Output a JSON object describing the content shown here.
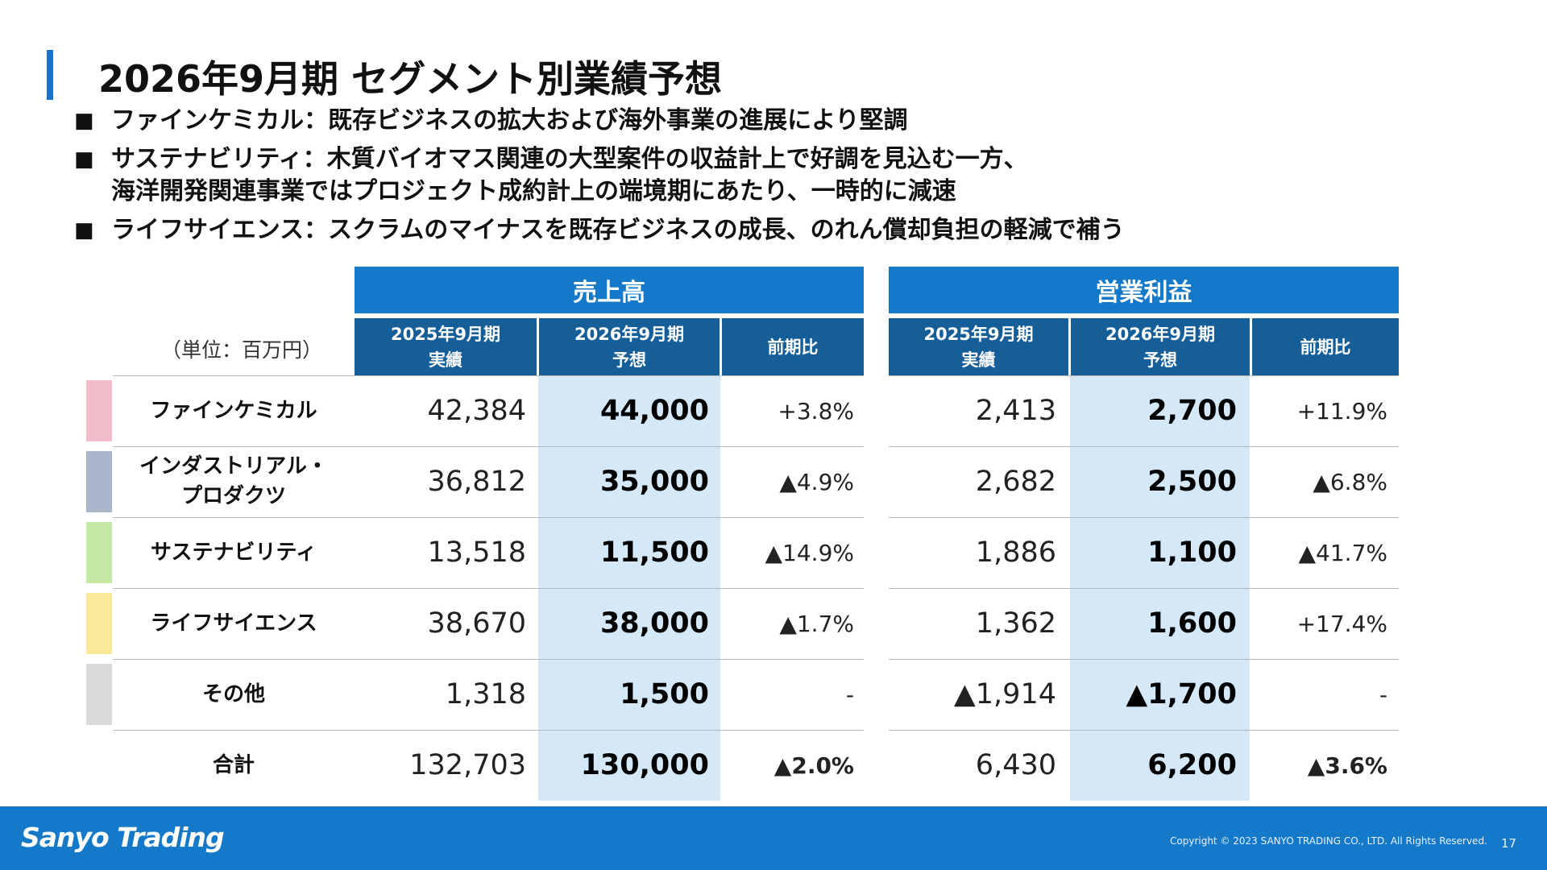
{
  "title": "2026年9月期 セグメント別業績予想",
  "bullets": [
    {
      "text": "ファインケミカル：既存ビジネスの拡大および海外事業の進展により堅調"
    },
    {
      "text": "サステナビリティ：木質バイオマス関連の大型案件の収益計上で好調を見込む一方、\n海洋開発関連事業ではプロジェクト成約計上の端境期にあたり、一時的に減速"
    },
    {
      "text": "ライフサイエンス：スクラムのマイナスを既存ビジネスの成長、のれん償却負担の軽減で補う"
    }
  ],
  "table": {
    "unit": "（単位：百万円）",
    "groups": [
      "売上高",
      "営業利益"
    ],
    "subheaders": [
      "2025年9月期\n実績",
      "2026年9月期\n予想",
      "前期比",
      "2025年9月期\n実績",
      "2026年9月期\n予想",
      "前期比"
    ],
    "rows": [
      {
        "segment": "ファインケミカル",
        "color": "#f2bccb",
        "cells": [
          "42,384",
          "44,000",
          "+3.8%",
          "2,413",
          "2,700",
          "+11.9%"
        ]
      },
      {
        "segment": "インダストリアル・\nプロダクツ",
        "color": "#a9b5c8",
        "cells": [
          "36,812",
          "35,000",
          "▲4.9%",
          "2,682",
          "2,500",
          "▲6.8%"
        ]
      },
      {
        "segment": "サステナビリティ",
        "color": "#c5e8a4",
        "cells": [
          "13,518",
          "11,500",
          "▲14.9%",
          "1,886",
          "1,100",
          "▲41.7%"
        ]
      },
      {
        "segment": "ライフサイエンス",
        "color": "#fbe99a",
        "cells": [
          "38,670",
          "38,000",
          "▲1.7%",
          "1,362",
          "1,600",
          "+17.4%"
        ]
      },
      {
        "segment": "その他",
        "color": "#d9d9d9",
        "cells": [
          "1,318",
          "1,500",
          "-",
          "▲1,914",
          "▲1,700",
          "-"
        ]
      },
      {
        "segment": "合計",
        "color": "",
        "cells": [
          "132,703",
          "130,000",
          "▲2.0%",
          "6,430",
          "6,200",
          "▲3.6%"
        ]
      }
    ]
  },
  "footer": {
    "logo": "Sanyo Trading",
    "copyright": "Copyright © 2023 SANYO TRADING CO., LTD. All Rights Reserved.",
    "page": "17"
  }
}
